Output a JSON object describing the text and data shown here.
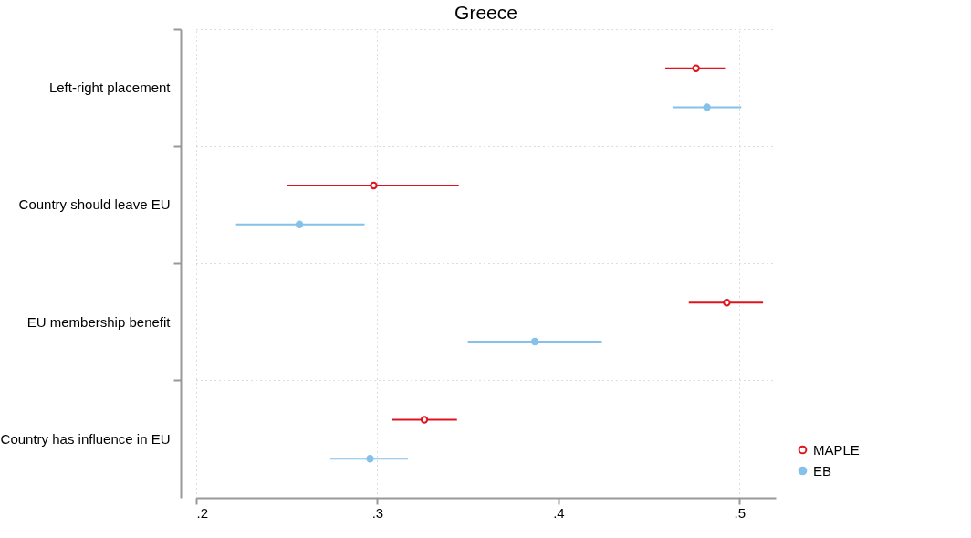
{
  "chart_data": {
    "type": "scatter",
    "orientation": "horizontal",
    "title": "Greece",
    "categories": [
      "Left-right placement",
      "Country should leave EU",
      "EU membership benefit",
      "Country has influence in EU"
    ],
    "series": [
      {
        "name": "MAPLE",
        "color": "#e0141e",
        "values": [
          0.476,
          0.298,
          0.493,
          0.326
        ],
        "errors": [
          [
            0.459,
            0.492
          ],
          [
            0.25,
            0.345
          ],
          [
            0.472,
            0.513
          ],
          [
            0.308,
            0.344
          ]
        ]
      },
      {
        "name": "EB",
        "color": "#85c1e9",
        "values": [
          0.482,
          0.257,
          0.387,
          0.296
        ],
        "errors": [
          [
            0.463,
            0.501
          ],
          [
            0.222,
            0.293
          ],
          [
            0.35,
            0.424
          ],
          [
            0.274,
            0.317
          ]
        ]
      }
    ],
    "xlim": [
      0.2,
      0.52
    ],
    "xticks": [
      {
        "value": 0.2,
        "label": ".2"
      },
      {
        "value": 0.3,
        "label": ".3"
      },
      {
        "value": 0.4,
        "label": ".4"
      },
      {
        "value": 0.5,
        "label": ".5"
      }
    ],
    "grid": true,
    "legend": "bottom right",
    "marker": "circle"
  }
}
